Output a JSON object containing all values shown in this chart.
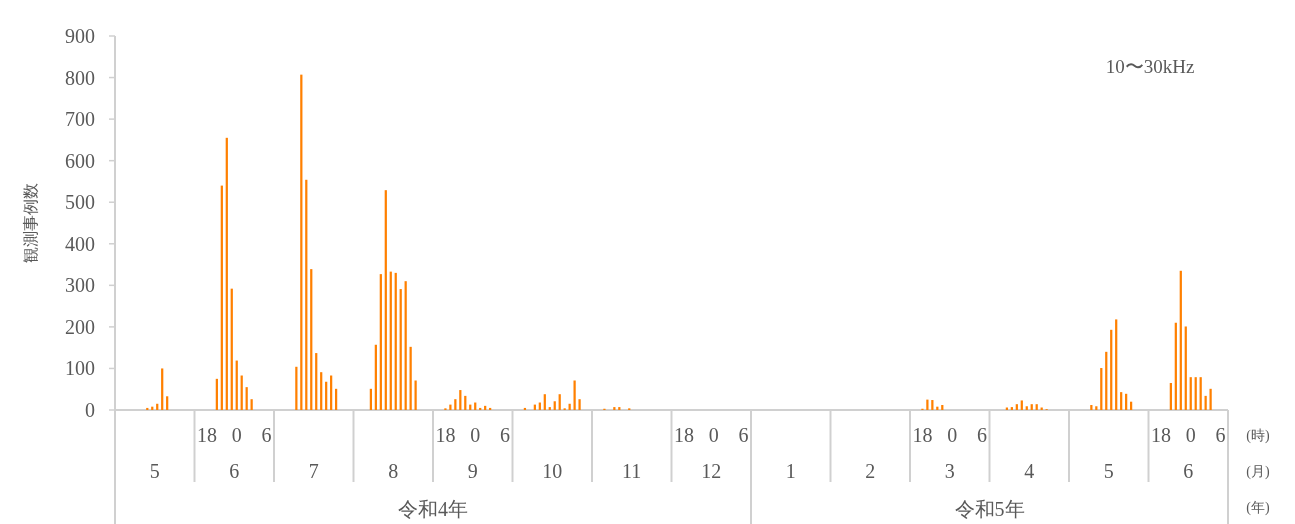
{
  "chart_data": {
    "type": "bar",
    "ylabel": "観測事例数",
    "color": "#ff8000",
    "ylim": [
      0,
      900
    ],
    "yticks": [
      0,
      100,
      200,
      300,
      400,
      500,
      600,
      700,
      800,
      900
    ],
    "annotations": [
      "10〜30kHz",
      "(時)",
      "(月)",
      "(年)",
      "5",
      "6",
      "7",
      "8",
      "9",
      "10",
      "11",
      "12",
      "1",
      "2",
      "3",
      "4",
      "5",
      "6",
      "令和4年",
      "令和5年"
    ],
    "categories": [
      null,
      null,
      null,
      null,
      null,
      null,
      null,
      null,
      null,
      null,
      null,
      null,
      null,
      null,
      null,
      null,
      null,
      null,
      "18",
      null,
      null,
      null,
      null,
      null,
      "0",
      null,
      null,
      null,
      null,
      null,
      "6",
      null,
      null,
      null,
      null,
      null,
      null,
      null,
      null,
      null,
      null,
      null,
      null,
      null,
      null,
      null,
      null,
      null,
      null,
      null,
      null,
      null,
      null,
      null,
      null,
      null,
      null,
      null,
      null,
      null,
      null,
      null,
      null,
      null,
      null,
      null,
      "18",
      null,
      null,
      null,
      null,
      null,
      "0",
      null,
      null,
      null,
      null,
      null,
      "6",
      null,
      null,
      null,
      null,
      null,
      null,
      null,
      null,
      null,
      null,
      null,
      null,
      null,
      null,
      null,
      null,
      null,
      null,
      null,
      null,
      null,
      null,
      null,
      null,
      null,
      null,
      null,
      null,
      null,
      null,
      null,
      null,
      null,
      null,
      null,
      "18",
      null,
      null,
      null,
      null,
      null,
      "0",
      null,
      null,
      null,
      null,
      null,
      "6",
      null,
      null,
      null,
      null,
      null,
      null,
      null,
      null,
      null,
      null,
      null,
      null,
      null,
      null,
      null,
      null,
      null,
      null,
      null,
      null,
      null,
      null,
      null,
      null,
      null,
      null,
      null,
      null,
      null,
      null,
      null,
      null,
      null,
      null,
      null,
      "18",
      null,
      null,
      null,
      null,
      null,
      "0",
      null,
      null,
      null,
      null,
      null,
      "6",
      null,
      null,
      null,
      null,
      null,
      null,
      null,
      null,
      null,
      null,
      null,
      null,
      null,
      null,
      null,
      null,
      null,
      null,
      null,
      null,
      null,
      null,
      null,
      null,
      null,
      null,
      null,
      null,
      null,
      null,
      null,
      null,
      null,
      null,
      null,
      "18",
      null,
      null,
      null,
      null,
      null,
      "0",
      null,
      null,
      null,
      null,
      null,
      "6",
      null
    ],
    "values": [
      0,
      0,
      0,
      0,
      0,
      0,
      5,
      8,
      15,
      100,
      33,
      0,
      0,
      0,
      0,
      0,
      0,
      0,
      0,
      0,
      75,
      540,
      655,
      292,
      119,
      83,
      55,
      26,
      0,
      0,
      0,
      0,
      0,
      0,
      0,
      0,
      104,
      807,
      554,
      339,
      137,
      91,
      68,
      83,
      51,
      0,
      0,
      0,
      0,
      0,
      0,
      51,
      157,
      327,
      529,
      333,
      330,
      291,
      310,
      152,
      71,
      0,
      0,
      0,
      0,
      0,
      4,
      13,
      26,
      48,
      34,
      13,
      18,
      5,
      10,
      5,
      0,
      0,
      0,
      0,
      0,
      0,
      5,
      0,
      13,
      18,
      38,
      7,
      21,
      38,
      4,
      15,
      71,
      26,
      0,
      0,
      0,
      0,
      3,
      0,
      7,
      7,
      0,
      4,
      0,
      0,
      0,
      0,
      0,
      0,
      0,
      0,
      0,
      0,
      0,
      0,
      0,
      0,
      0,
      0,
      0,
      0,
      0,
      0,
      0,
      0,
      0,
      0,
      0,
      0,
      0,
      0,
      0,
      0,
      0,
      0,
      0,
      0,
      0,
      0,
      0,
      0,
      0,
      0,
      0,
      0,
      0,
      0,
      0,
      0,
      0,
      0,
      0,
      0,
      0,
      0,
      0,
      0,
      0,
      0,
      0,
      0,
      3,
      25,
      24,
      8,
      12,
      0,
      0,
      0,
      0,
      0,
      0,
      0,
      0,
      0,
      0,
      0,
      0,
      6,
      7,
      14,
      23,
      9,
      14,
      14,
      6,
      2,
      0,
      0,
      0,
      0,
      0,
      0,
      0,
      0,
      12,
      9,
      101,
      140,
      193,
      218,
      43,
      39,
      20,
      0,
      0,
      0,
      0,
      0,
      0,
      0,
      65,
      210,
      335,
      201,
      79,
      79,
      79,
      34,
      51,
      0,
      0,
      0
    ]
  }
}
